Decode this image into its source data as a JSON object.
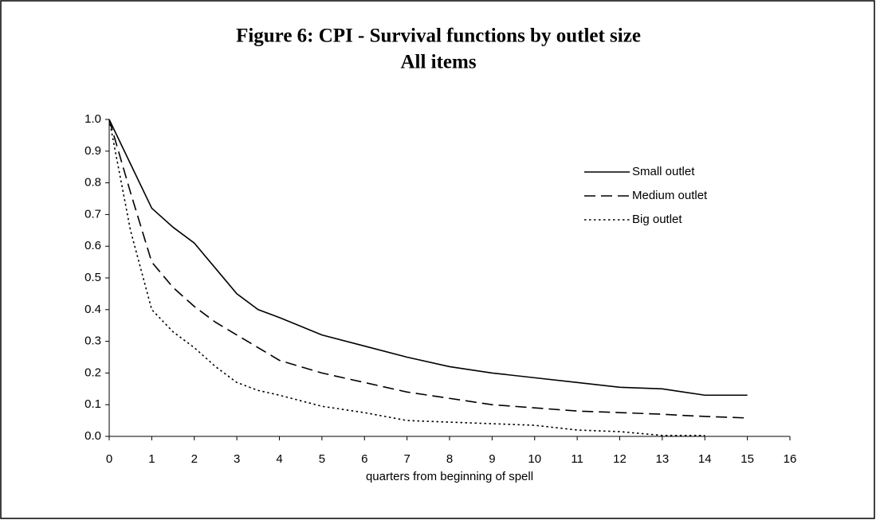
{
  "chart_data": {
    "type": "line",
    "title": "Figure 6: CPI - Survival functions by outlet size",
    "subtitle": "All items",
    "x_label": "quarters from beginning of spell",
    "x": [
      0,
      0.5,
      1,
      1.5,
      2,
      2.5,
      3,
      3.5,
      4,
      5,
      6,
      7,
      8,
      9,
      10,
      11,
      12,
      13,
      13.5,
      14,
      15
    ],
    "series": [
      {
        "name": "Small outlet",
        "color": "#000000",
        "dash": "solid",
        "values": [
          1.0,
          0.86,
          0.72,
          0.66,
          0.61,
          0.53,
          0.45,
          0.4,
          0.375,
          0.32,
          0.285,
          0.25,
          0.22,
          0.2,
          0.185,
          0.17,
          0.155,
          0.15,
          0.14,
          0.13,
          0.13
        ]
      },
      {
        "name": "Medium outlet",
        "color": "#000000",
        "dash": "dashed",
        "values": [
          1.0,
          0.77,
          0.55,
          0.47,
          0.41,
          0.36,
          0.32,
          0.28,
          0.24,
          0.2,
          0.17,
          0.14,
          0.12,
          0.1,
          0.09,
          0.08,
          0.075,
          0.07,
          0.066,
          0.063,
          0.058
        ]
      },
      {
        "name": "Big outlet",
        "color": "#000000",
        "dash": "dotted",
        "values": [
          1.0,
          0.65,
          0.4,
          0.33,
          0.28,
          0.22,
          0.17,
          0.145,
          0.13,
          0.095,
          0.075,
          0.05,
          0.045,
          0.04,
          0.035,
          0.02,
          0.015,
          0.003,
          0.003,
          0.003,
          null
        ]
      }
    ],
    "xlim": [
      0,
      16
    ],
    "xticks": [
      0,
      1,
      2,
      3,
      4,
      5,
      6,
      7,
      8,
      9,
      10,
      11,
      12,
      13,
      14,
      15,
      16
    ],
    "ylim": [
      0,
      1
    ],
    "yticks": [
      {
        "value": 0,
        "label": "0.0"
      },
      0.1,
      0.2,
      0.3,
      0.4,
      0.5,
      0.6,
      0.7,
      0.8,
      0.9,
      {
        "value": 1,
        "label": "1.0"
      }
    ],
    "grid": false,
    "legend": "upper right"
  }
}
